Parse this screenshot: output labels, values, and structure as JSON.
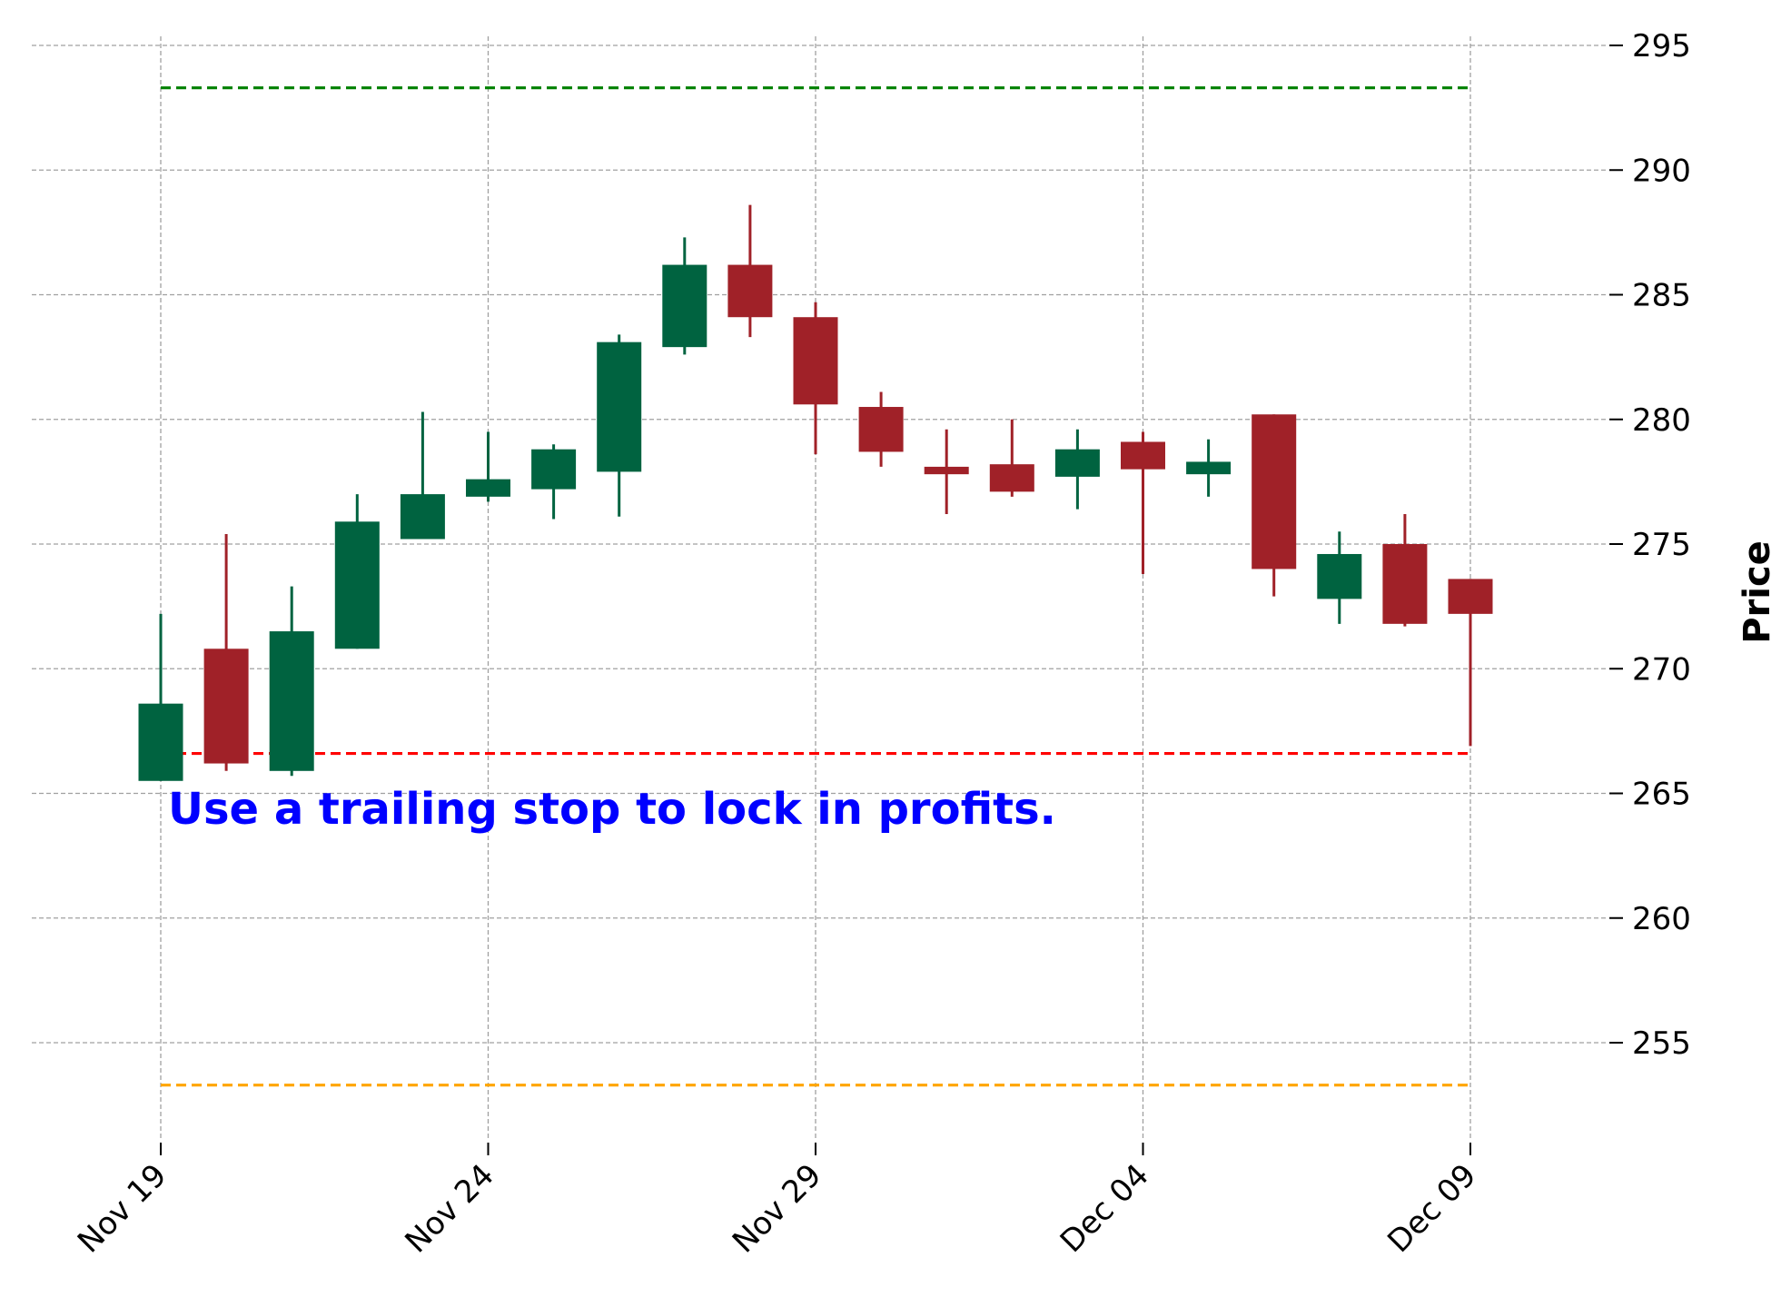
{
  "chart_data": {
    "type": "candlestick",
    "title": "",
    "xlabel": "",
    "ylabel": "Price",
    "ylim": [
      250.5,
      297
    ],
    "y_ticks": [
      255,
      260,
      265,
      270,
      275,
      280,
      285,
      290,
      295
    ],
    "grid": true,
    "y_axis_side": "right",
    "x_tick_labels": [
      {
        "index": 0,
        "label": "Nov 19"
      },
      {
        "index": 5,
        "label": "Nov 24"
      },
      {
        "index": 10,
        "label": "Nov 29"
      },
      {
        "index": 15,
        "label": "Dec 04"
      },
      {
        "index": 20,
        "label": "Dec 09"
      }
    ],
    "candles": [
      {
        "open": 265.5,
        "high": 272.2,
        "low": 265.5,
        "close": 268.6
      },
      {
        "open": 270.8,
        "high": 275.4,
        "low": 265.9,
        "close": 266.2
      },
      {
        "open": 265.9,
        "high": 273.3,
        "low": 265.7,
        "close": 271.5
      },
      {
        "open": 270.8,
        "high": 277.0,
        "low": 270.8,
        "close": 275.9
      },
      {
        "open": 275.2,
        "high": 280.3,
        "low": 275.2,
        "close": 277.0
      },
      {
        "open": 276.9,
        "high": 279.5,
        "low": 276.7,
        "close": 277.6
      },
      {
        "open": 277.2,
        "high": 279.0,
        "low": 276.0,
        "close": 278.8
      },
      {
        "open": 277.9,
        "high": 283.4,
        "low": 276.1,
        "close": 283.1
      },
      {
        "open": 282.9,
        "high": 287.3,
        "low": 282.6,
        "close": 286.2
      },
      {
        "open": 286.2,
        "high": 288.6,
        "low": 283.3,
        "close": 284.1
      },
      {
        "open": 284.1,
        "high": 284.7,
        "low": 278.6,
        "close": 280.6
      },
      {
        "open": 280.5,
        "high": 281.1,
        "low": 278.1,
        "close": 278.7
      },
      {
        "open": 278.1,
        "high": 279.6,
        "low": 276.2,
        "close": 277.8
      },
      {
        "open": 278.2,
        "high": 280.0,
        "low": 276.9,
        "close": 277.1
      },
      {
        "open": 277.7,
        "high": 279.6,
        "low": 276.4,
        "close": 278.8
      },
      {
        "open": 279.1,
        "high": 279.5,
        "low": 273.8,
        "close": 278.0
      },
      {
        "open": 277.8,
        "high": 279.2,
        "low": 276.9,
        "close": 278.3
      },
      {
        "open": 280.2,
        "high": 280.2,
        "low": 272.9,
        "close": 274.0
      },
      {
        "open": 272.8,
        "high": 275.5,
        "low": 271.8,
        "close": 274.6
      },
      {
        "open": 275.0,
        "high": 276.2,
        "low": 271.7,
        "close": 271.8
      },
      {
        "open": 273.6,
        "high": 273.6,
        "low": 266.9,
        "close": 272.2
      }
    ],
    "hlines": [
      {
        "value": 293.3,
        "color": "#008000"
      },
      {
        "value": 266.6,
        "color": "#ff0000"
      },
      {
        "value": 253.3,
        "color": "#ffa500"
      }
    ],
    "annotation": {
      "text": "Use a trailing stop to lock in profits.",
      "color": "#0000ff",
      "index": 0,
      "value": 264.4
    },
    "colors": {
      "up": "#006340",
      "down": "#a02128",
      "grid": "#a0a0a0"
    }
  }
}
